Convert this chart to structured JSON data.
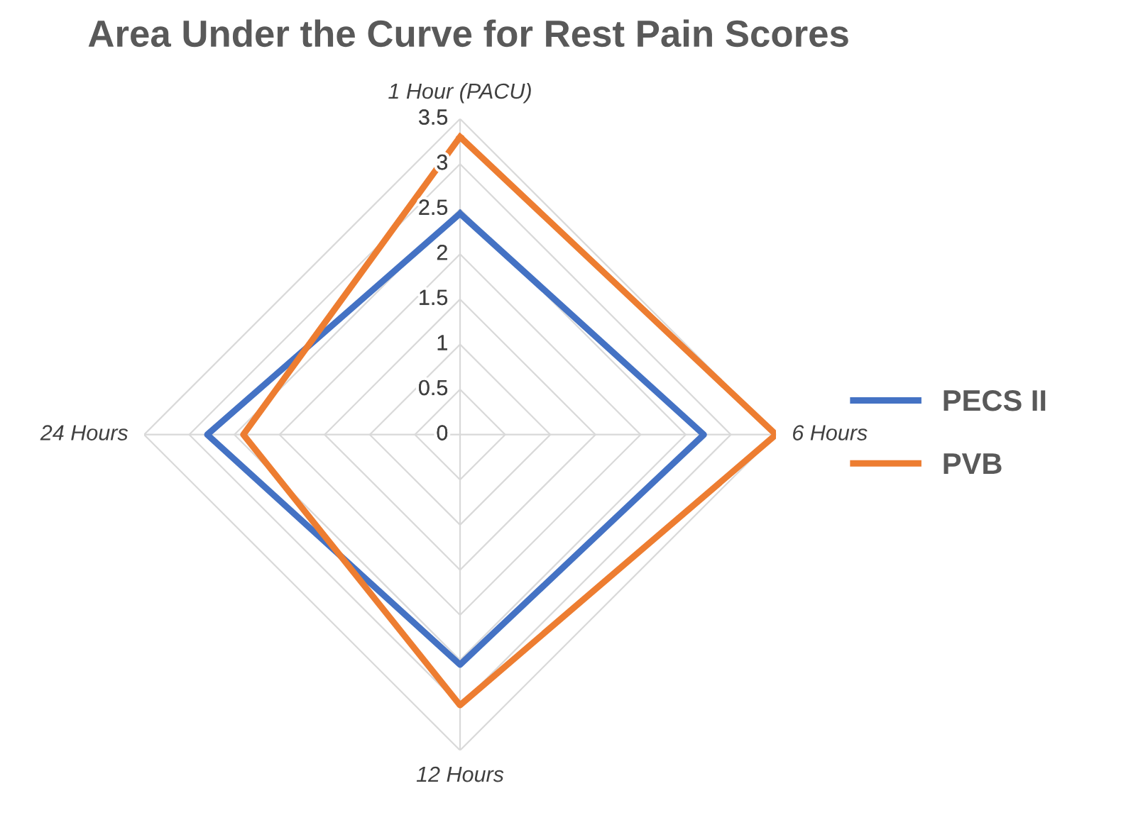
{
  "chart_data": {
    "type": "radar",
    "title": "Area Under the Curve for Rest Pain Scores",
    "categories": [
      "1 Hour (PACU)",
      "6 Hours",
      "12 Hours",
      "24 Hours"
    ],
    "series": [
      {
        "name": "PECS II",
        "color": "#4472c4",
        "values": [
          2.45,
          2.7,
          2.55,
          2.8
        ]
      },
      {
        "name": "PVB",
        "color": "#ed7d31",
        "values": [
          3.3,
          3.5,
          3.0,
          2.4
        ]
      }
    ],
    "ylim": [
      0,
      3.5
    ],
    "yticks": [
      0,
      0.5,
      1,
      1.5,
      2,
      2.5,
      3,
      3.5
    ],
    "grid": true,
    "legend": "right"
  }
}
